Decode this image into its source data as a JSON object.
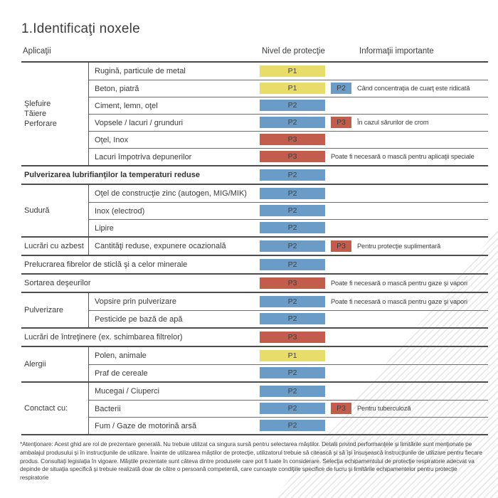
{
  "title": "1.Identificaţi noxele",
  "columns": {
    "applications": "Aplicaţii",
    "protection": "Nivel de protecţie",
    "info": "Informaţii importante"
  },
  "colors": {
    "P1": "#e8dc6b",
    "P2": "#6b9cc7",
    "P3": "#c25c4d"
  },
  "sections": [
    {
      "type": "group",
      "category_lines": [
        "Şlefuire",
        "Tăiere",
        "Perforare"
      ],
      "rows": [
        {
          "label": "Rugină, particule de metal",
          "level": "P1"
        },
        {
          "label": "Beton, piatră",
          "level": "P1",
          "extra_level": "P2",
          "note": "Când concentraţia de cuarţ este ridicată"
        },
        {
          "label": "Ciment, lemn, oţel",
          "level": "P2"
        },
        {
          "label": "Vopsele / lacuri / grunduri",
          "level": "P2",
          "extra_level": "P3",
          "note": "În cazul sărurilor de crom"
        },
        {
          "label": "Oţel, Inox",
          "level": "P3"
        },
        {
          "label": "Lacuri împotriva depunerilor",
          "level": "P3",
          "note": "Poate fi necesară o mască pentru aplicaţii speciale"
        }
      ]
    },
    {
      "type": "full",
      "rows": [
        {
          "label": "Pulverizarea lubrifianţilor la temperaturi reduse",
          "level": "P2",
          "bold": true
        }
      ]
    },
    {
      "type": "group",
      "category_lines": [
        "Sudură"
      ],
      "rows": [
        {
          "label": "Oţel de construcţie zinc (autogen, MIG/MIK)",
          "level": "P2"
        },
        {
          "label": "Inox (electrod)",
          "level": "P2"
        },
        {
          "label": "Lipire",
          "level": "P2"
        }
      ]
    },
    {
      "type": "group",
      "category_lines": [
        "Lucrări cu azbest"
      ],
      "rows": [
        {
          "label": "Cantităţi reduse, expunere ocazională",
          "level": "P2",
          "extra_level": "P3",
          "note": "Pentru protecţie suplimentară"
        }
      ]
    },
    {
      "type": "full",
      "rows": [
        {
          "label": "Prelucrarea fibrelor de sticlă şi a celor minerale",
          "level": "P2"
        }
      ]
    },
    {
      "type": "full",
      "rows": [
        {
          "label": "Sortarea deşeurilor",
          "level": "P3",
          "note": "Poate fi necesară o mască pentru gaze şi vapori"
        }
      ]
    },
    {
      "type": "group",
      "category_lines": [
        "Pulverizare"
      ],
      "rows": [
        {
          "label": "Vopsire prin pulverizare",
          "level": "P2",
          "note": "Poate fi necesară o mască pentru gaze şi vapori"
        },
        {
          "label": "Pesticide pe bază de apă",
          "level": "P2"
        }
      ]
    },
    {
      "type": "full",
      "rows": [
        {
          "label": "Lucrări de întreţinere (ex. schimbarea filtrelor)",
          "level": "P3"
        }
      ]
    },
    {
      "type": "group",
      "category_lines": [
        "Alergii"
      ],
      "rows": [
        {
          "label": "Polen, animale",
          "level": "P1"
        },
        {
          "label": "Praf de cereale",
          "level": "P2"
        }
      ]
    },
    {
      "type": "group",
      "category_lines": [
        "Conctact cu:"
      ],
      "rows": [
        {
          "label": "Mucegai / Ciuperci",
          "level": "P2"
        },
        {
          "label": "Bacterii",
          "level": "P2",
          "extra_level": "P3",
          "note": "Pentru tuberculoză"
        },
        {
          "label": "Fum / Gaze de motorină arsă",
          "level": "P2"
        }
      ]
    }
  ],
  "footnote": "*Atenţionare: Acest ghid are rol de prezentare generală. Nu trebuie utilizat ca singura sursă pentru selectarea măştilor. Detalii privind performanţele şi limitările sunt menţionate pe ambalajul produsului şi în instrucţiunile de utilizare. Înainte de utilizarea măştilor de protecţie, utilizatorul trebuie să citească şi să îşi însuşească instrucţiunile de utilizare pentru fiecare produs. Consultaţi legislaţia în vigoare. Măştile prezentate sunt câteva dintre produsele care pot fi luate în considerare. Selecţia echipamentului de protecţie respiratorie adecvat va depinde de situaţia specifică şi trebuie realizată doar de către o persoană competentă, care cunoaşte condiţiile specifice de lucru şi limitările echipamentelor pentru protecţie respiratorie"
}
